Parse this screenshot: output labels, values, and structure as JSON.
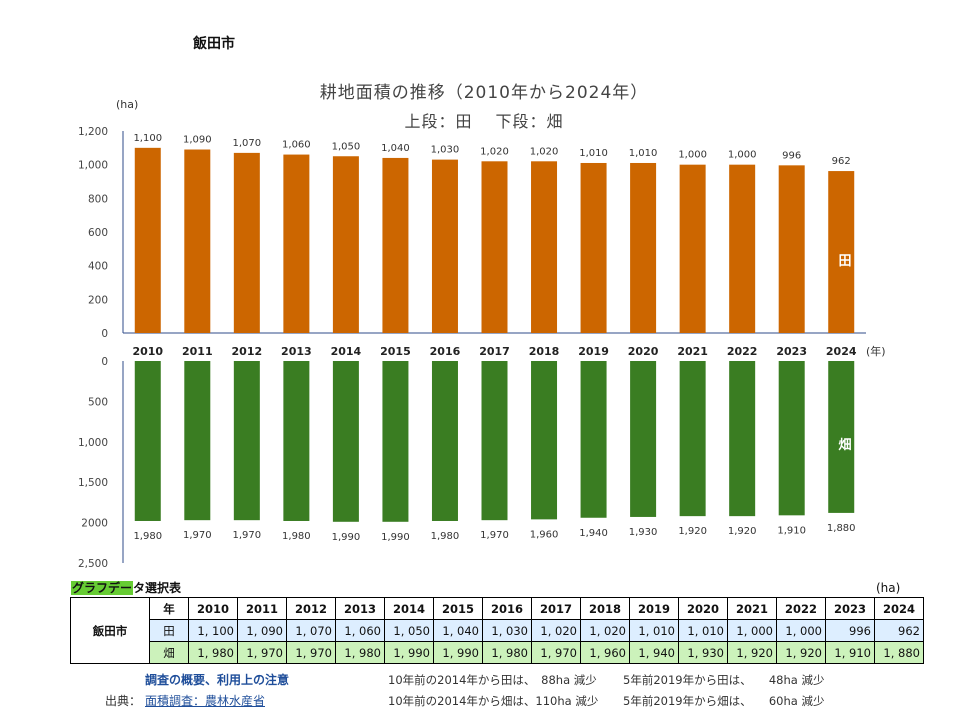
{
  "page": {
    "city": "飯田市",
    "title": "耕地面積の推移（2010年から2024年）",
    "subtitle": "上段：田　 下段：畑"
  },
  "chart_data": {
    "type": "bar",
    "title": "耕地面積の推移（2010年から2024年）",
    "subtitle": "上段：田　 下段：畑",
    "unit_label": "(ha)",
    "year_unit_label": "(年)",
    "categories": [
      "2010",
      "2011",
      "2012",
      "2013",
      "2014",
      "2015",
      "2016",
      "2017",
      "2018",
      "2019",
      "2020",
      "2021",
      "2022",
      "2023",
      "2024"
    ],
    "series": [
      {
        "name": "田",
        "color": "#cc6600",
        "values": [
          1100,
          1090,
          1070,
          1060,
          1050,
          1040,
          1030,
          1020,
          1020,
          1010,
          1010,
          1000,
          1000,
          996,
          962
        ],
        "value_labels": [
          "1,100",
          "1,090",
          "1,070",
          "1,060",
          "1,050",
          "1,040",
          "1,030",
          "1,020",
          "1,020",
          "1,010",
          "1,010",
          "1,000",
          "1,000",
          "996",
          "962"
        ],
        "ylim": [
          0,
          1200
        ],
        "ticks": [
          0,
          200,
          400,
          600,
          800,
          1000,
          1200
        ],
        "tick_labels": [
          "0",
          "200",
          "400",
          "600",
          "800",
          "1,000",
          "1,200"
        ],
        "orientation": "up"
      },
      {
        "name": "畑",
        "color": "#3a7d22",
        "values": [
          1980,
          1970,
          1970,
          1980,
          1990,
          1990,
          1980,
          1970,
          1960,
          1940,
          1930,
          1920,
          1920,
          1910,
          1880
        ],
        "value_labels": [
          "1,980",
          "1,970",
          "1,970",
          "1,980",
          "1,990",
          "1,990",
          "1,980",
          "1,970",
          "1,960",
          "1,940",
          "1,930",
          "1,920",
          "1,920",
          "1,910",
          "1,880"
        ],
        "ylim": [
          0,
          2500
        ],
        "ticks": [
          0,
          500,
          1000,
          1500,
          2000,
          2500
        ],
        "tick_labels": [
          "0",
          "500",
          "1,000",
          "1,500",
          "2000",
          "2,500"
        ],
        "orientation": "down"
      }
    ]
  },
  "table": {
    "caption_highlight": "グラフデー",
    "caption_rest": "タ選択表",
    "unit": "(ha)",
    "city": "飯田市",
    "year_header": "年",
    "years": [
      "2010",
      "2011",
      "2012",
      "2013",
      "2014",
      "2015",
      "2016",
      "2017",
      "2018",
      "2019",
      "2020",
      "2021",
      "2022",
      "2023",
      "2024"
    ],
    "paddy_label": "田",
    "paddy_values": [
      "1, 100",
      "1, 090",
      "1, 070",
      "1, 060",
      "1, 050",
      "1, 040",
      "1, 030",
      "1, 020",
      "1, 020",
      "1, 010",
      "1, 010",
      "1, 000",
      "1, 000",
      "996",
      "962"
    ],
    "field_label": "畑",
    "field_values": [
      "1, 980",
      "1, 970",
      "1, 970",
      "1, 980",
      "1, 990",
      "1, 990",
      "1, 980",
      "1, 970",
      "1, 960",
      "1, 940",
      "1, 930",
      "1, 920",
      "1, 920",
      "1, 910",
      "1, 880"
    ]
  },
  "footer": {
    "notes_link": "調査の概要、利用上の注意",
    "source_label": "出典：",
    "source_link": "面積調査：農林水産省",
    "note_paddy_10y": "10年前の2014年から田は、　88ha 減少",
    "note_field_10y": "10年前の2014年から畑は、110ha 減少",
    "note_paddy_5y": "5年前2019年から田は、　　48ha 減少",
    "note_field_5y": "5年前2019年から畑は、　　60ha 減少"
  }
}
